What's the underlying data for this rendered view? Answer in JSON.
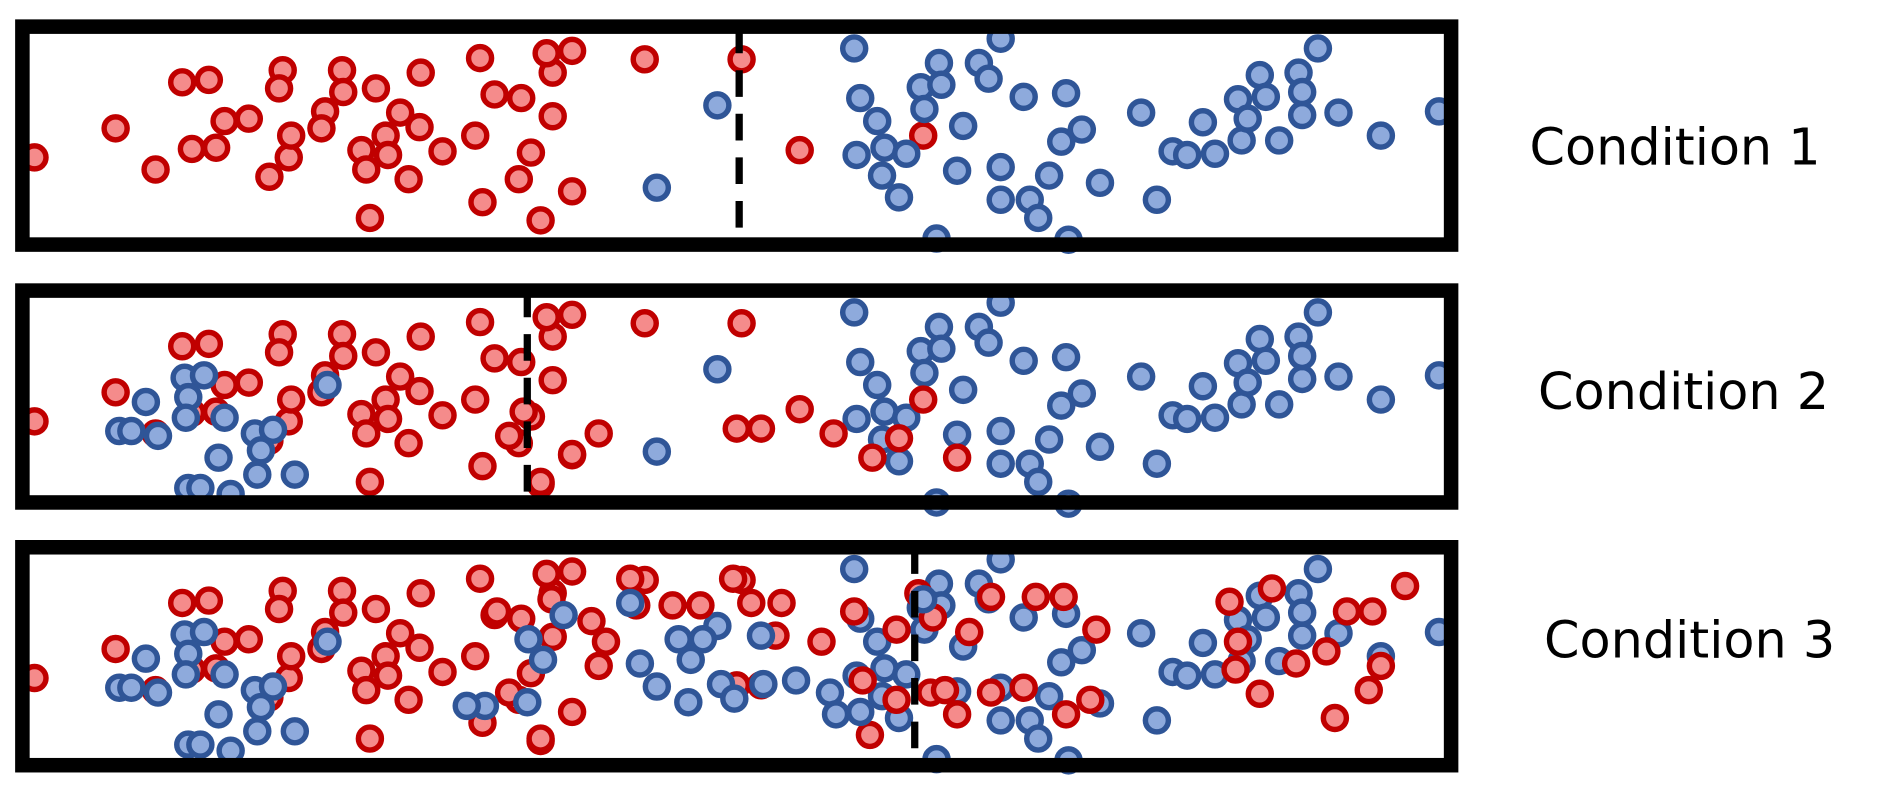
{
  "conditions": [
    {
      "label": "Condition 1"
    },
    {
      "label": "Condition 2"
    },
    {
      "label": "Condition 3"
    }
  ],
  "colors": {
    "red_stroke": "#c00000",
    "red_fill": "#f58b8b",
    "blue_stroke": "#2f5597",
    "blue_fill": "#8eaadc",
    "frame": "#000000",
    "threshold_line": "#000000"
  }
}
